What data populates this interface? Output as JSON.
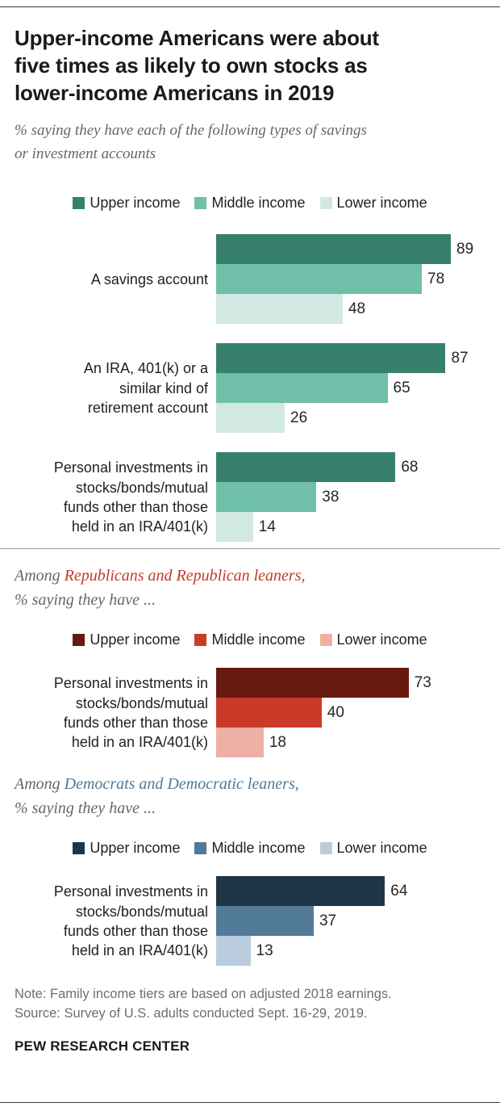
{
  "title": "Upper-income Americans were about\nfive times as likely to own stocks as\nlower-income Americans in 2019",
  "subtitle": "% saying they have each of the following types of savings\nor investment accounts",
  "sections": {
    "republican": {
      "prefix": "Among ",
      "group": "Republicans and Republican leaners,",
      "line2": "% saying they have ..."
    },
    "democrat": {
      "prefix": "Among ",
      "group": "Democrats and Democratic leaners,",
      "line2": "% saying they have ..."
    }
  },
  "colors": {
    "republican_highlight": "#c23b28",
    "democrat_highlight": "#4d7a96"
  },
  "note": "Note: Family income tiers are based on adjusted 2018 earnings.",
  "source": "Source: Survey of U.S. adults conducted Sept. 16-29, 2019.",
  "footer": "PEW RESEARCH CENTER",
  "chart_data": [
    {
      "type": "bar",
      "orientation": "horizontal",
      "title": "% saying they have each of the following types of savings or investment accounts",
      "categories": [
        "A savings account",
        "An IRA, 401(k) or a\nsimilar kind of\nretirement account",
        "Personal investments in\nstocks/bonds/mutual\nfunds other than those\nheld in an IRA/401(k)"
      ],
      "series": [
        {
          "name": "Upper income",
          "color": "#36806d",
          "values": [
            89,
            87,
            68
          ]
        },
        {
          "name": "Middle income",
          "color": "#6fbfa9",
          "values": [
            78,
            65,
            38
          ]
        },
        {
          "name": "Lower income",
          "color": "#d2e9e3",
          "values": [
            48,
            26,
            14
          ]
        }
      ],
      "xlim": [
        0,
        100
      ],
      "value_labels": "outside-right",
      "legend_position": "top"
    },
    {
      "type": "bar",
      "orientation": "horizontal",
      "title": "Among Republicans and Republican leaners, % saying they have ...",
      "categories": [
        "Personal investments in\nstocks/bonds/mutual\nfunds other than those\nheld in an IRA/401(k)"
      ],
      "series": [
        {
          "name": "Upper income",
          "color": "#67190f",
          "values": [
            73
          ]
        },
        {
          "name": "Middle income",
          "color": "#ca3a28",
          "values": [
            40
          ]
        },
        {
          "name": "Lower income",
          "color": "#eeafa5",
          "values": [
            18
          ]
        }
      ],
      "xlim": [
        0,
        100
      ],
      "value_labels": "outside-right",
      "legend_position": "top"
    },
    {
      "type": "bar",
      "orientation": "horizontal",
      "title": "Among Democrats and Democratic leaners, % saying they have ...",
      "categories": [
        "Personal investments in\nstocks/bonds/mutual\nfunds other than those\nheld in an IRA/401(k)"
      ],
      "series": [
        {
          "name": "Upper income",
          "color": "#1e3546",
          "values": [
            64
          ]
        },
        {
          "name": "Middle income",
          "color": "#527a99",
          "values": [
            37
          ]
        },
        {
          "name": "Lower income",
          "color": "#bacddf",
          "values": [
            13
          ]
        }
      ],
      "xlim": [
        0,
        100
      ],
      "value_labels": "outside-right",
      "legend_position": "top"
    }
  ]
}
